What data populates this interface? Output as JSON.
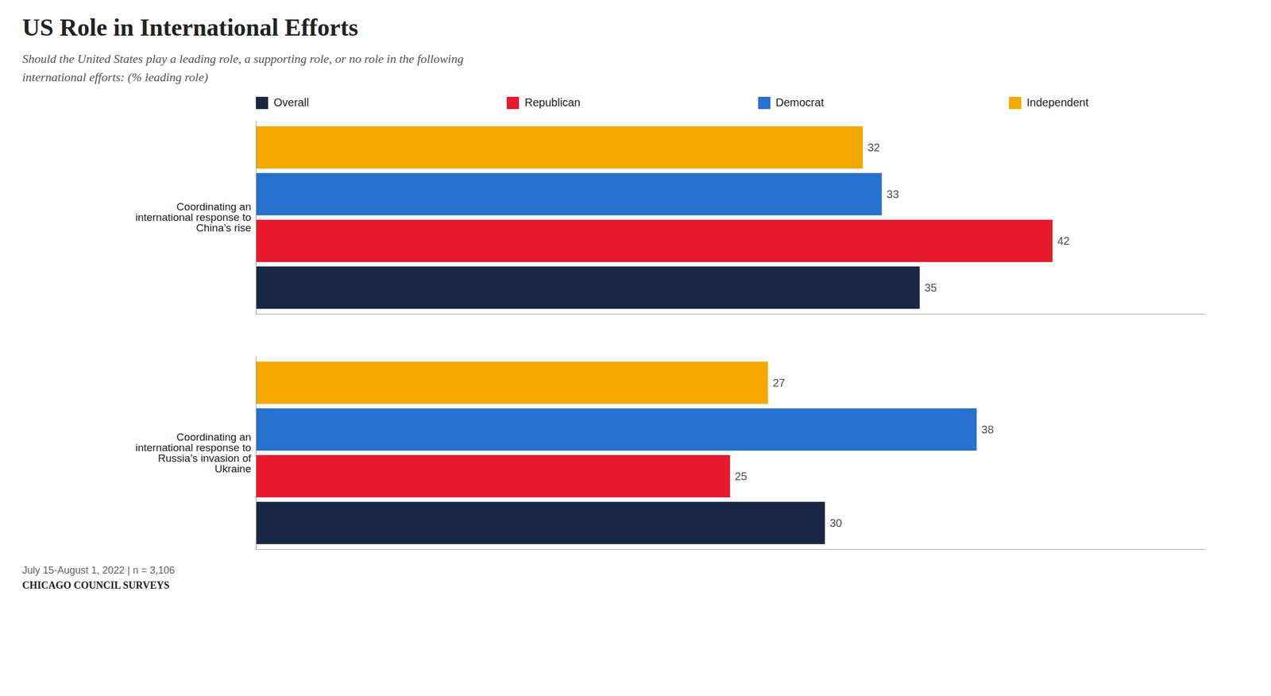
{
  "chart_data": {
    "type": "bar",
    "orientation": "horizontal",
    "title": "US Role in International Efforts",
    "subtitle": "Should the United States play a leading role, a supporting role, or no role in the following\ninternational efforts: (% leading role)",
    "categories": [
      "Coordinating an\ninternational response to\nChina’s rise",
      "Coordinating an\ninternational response to\nRussia’s invasion of\nUkraine"
    ],
    "series": [
      {
        "name": "Overall",
        "color": "#1a2744",
        "values": [
          35,
          30
        ]
      },
      {
        "name": "Republican",
        "color": "#e8192c",
        "values": [
          42,
          25
        ]
      },
      {
        "name": "Democrat",
        "color": "#2672ce",
        "values": [
          33,
          38
        ]
      },
      {
        "name": "Independent",
        "color": "#f5a800",
        "values": [
          32,
          27
        ]
      }
    ],
    "xlim": [
      0,
      50
    ],
    "tick_labels": "y",
    "data_labels": true,
    "legend": "top",
    "grid": false,
    "footnote": "July 15-August 1, 2022 | n = 3,106",
    "source": "CHICAGO COUNCIL SURVEYS"
  }
}
